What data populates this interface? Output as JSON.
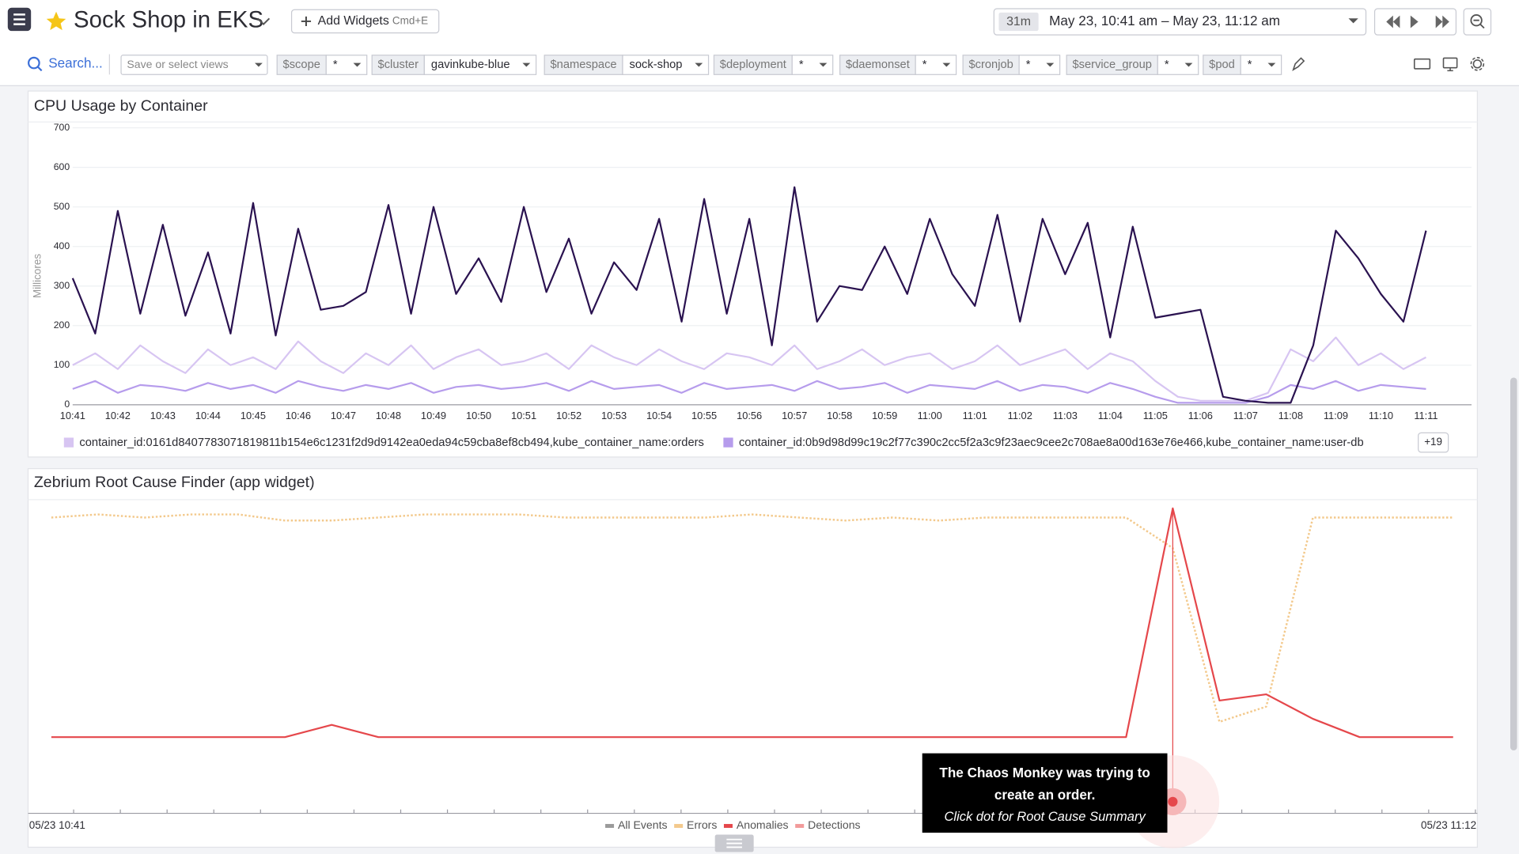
{
  "header": {
    "title": "Sock Shop in EKS",
    "add_widgets": "Add Widgets",
    "shortcut": "Cmd+E",
    "time_span": "31m",
    "time_range": "May 23, 10:41 am – May 23, 11:12 am"
  },
  "filters": {
    "search": "Search...",
    "views": "Save or select views",
    "variables": [
      {
        "name": "$scope",
        "value": "*"
      },
      {
        "name": "$cluster",
        "value": "gavinkube-blue"
      },
      {
        "name": "$namespace",
        "value": "sock-shop"
      },
      {
        "name": "$deployment",
        "value": "*"
      },
      {
        "name": "$daemonset",
        "value": "*"
      },
      {
        "name": "$cronjob",
        "value": "*"
      },
      {
        "name": "$service_group",
        "value": "*"
      },
      {
        "name": "$pod",
        "value": "*"
      }
    ]
  },
  "chart_data": [
    {
      "type": "line",
      "title": "CPU Usage by Container",
      "y_label": "Millicores",
      "ylim": [
        0,
        700
      ],
      "yticks": [
        0,
        100,
        200,
        300,
        400,
        500,
        600,
        700
      ],
      "categories": [
        "10:41",
        null,
        "10:42",
        null,
        "10:43",
        null,
        "10:44",
        null,
        "10:45",
        null,
        "10:46",
        null,
        "10:47",
        null,
        "10:48",
        null,
        "10:49",
        null,
        "10:50",
        null,
        "10:51",
        null,
        "10:52",
        null,
        "10:53",
        null,
        "10:54",
        null,
        "10:55",
        null,
        "10:56",
        null,
        "10:57",
        null,
        "10:58",
        null,
        "10:59",
        null,
        "11:00",
        null,
        "11:01",
        null,
        "11:02",
        null,
        "11:03",
        null,
        "11:04",
        null,
        "11:05",
        null,
        "11:06",
        null,
        "11:07",
        null,
        "11:08",
        null,
        "11:09",
        null,
        "11:10",
        null,
        "11:11"
      ],
      "series": [
        {
          "name": "container_id:0161d8407783071819811b154e6c1231f2d9d9142ea0eda94c59cba8ef8cb494,kube_container_name:orders",
          "color": "#d7c5f2",
          "values": [
            100,
            130,
            90,
            150,
            110,
            80,
            140,
            100,
            120,
            90,
            160,
            110,
            80,
            130,
            100,
            150,
            90,
            120,
            140,
            100,
            110,
            130,
            90,
            150,
            120,
            100,
            140,
            110,
            90,
            130,
            120,
            100,
            150,
            90,
            110,
            140,
            100,
            120,
            130,
            90,
            110,
            150,
            100,
            120,
            140,
            90,
            130,
            110,
            60,
            20,
            10,
            10,
            10,
            30,
            140,
            110,
            170,
            100,
            130,
            90,
            120
          ]
        },
        {
          "name": "container_id:0b9d98d99c19c2f77c390c2cc5f2a3c9f23aec9cee2c708ae8a00d163e76e466,kube_container_name:user-db",
          "color": "#b69cec",
          "values": [
            40,
            60,
            30,
            50,
            45,
            35,
            55,
            40,
            50,
            30,
            60,
            45,
            35,
            50,
            40,
            55,
            30,
            45,
            50,
            40,
            45,
            55,
            35,
            60,
            40,
            45,
            50,
            30,
            55,
            40,
            45,
            50,
            35,
            60,
            40,
            45,
            55,
            30,
            50,
            45,
            40,
            60,
            35,
            50,
            45,
            30,
            55,
            40,
            20,
            5,
            5,
            5,
            5,
            20,
            50,
            40,
            60,
            35,
            50,
            45,
            40
          ]
        },
        {
          "color": "#2a1250",
          "values": [
            320,
            180,
            490,
            230,
            455,
            225,
            385,
            180,
            510,
            175,
            445,
            240,
            250,
            285,
            505,
            230,
            500,
            280,
            370,
            260,
            500,
            285,
            420,
            230,
            360,
            290,
            470,
            210,
            520,
            230,
            470,
            150,
            550,
            210,
            300,
            290,
            400,
            280,
            470,
            330,
            250,
            480,
            210,
            470,
            330,
            460,
            170,
            450,
            220,
            230,
            240,
            20,
            10,
            5,
            5,
            150,
            440,
            370,
            280,
            210,
            440
          ]
        }
      ],
      "legend_more": "+19"
    },
    {
      "type": "line",
      "title": "Zebrium Root Cause Finder (app widget)",
      "ylim": [
        0,
        100
      ],
      "categories": [
        "05/23 10:41",
        null,
        null,
        null,
        null,
        null,
        null,
        null,
        null,
        null,
        null,
        null,
        null,
        null,
        null,
        null,
        null,
        null,
        null,
        null,
        null,
        null,
        null,
        null,
        null,
        null,
        null,
        null,
        null,
        null,
        "05/23 11:12"
      ],
      "series": [
        {
          "name": "All Events",
          "color": "#9a9a9a"
        },
        {
          "name": "Errors",
          "color": "#f3c98c",
          "dash": true,
          "values": [
            97,
            98,
            97,
            98,
            98,
            96,
            96,
            97,
            98,
            98,
            98,
            97,
            97,
            97,
            97,
            98,
            97,
            96,
            97,
            96,
            97,
            97,
            97,
            97,
            87,
            30,
            35,
            97,
            97,
            97,
            97
          ]
        },
        {
          "name": "Anomalies",
          "color": "#e5474b",
          "values": [
            25,
            25,
            25,
            25,
            25,
            25,
            29,
            25,
            25,
            25,
            25,
            25,
            25,
            25,
            25,
            25,
            25,
            25,
            25,
            25,
            25,
            25,
            25,
            25,
            100,
            37,
            39,
            31,
            25,
            25,
            25
          ]
        },
        {
          "name": "Detections",
          "color": "#f29a9a"
        }
      ],
      "annotation": {
        "lines": [
          "The Chaos Monkey was trying to",
          "create an order."
        ],
        "hint": "Click dot for Root Cause Summary"
      }
    }
  ]
}
